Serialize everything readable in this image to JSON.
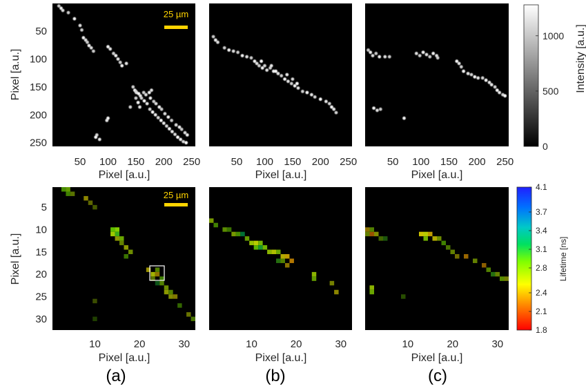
{
  "chart_data": [
    {
      "type": "heatmap",
      "panel": "(a)",
      "row": "intensity",
      "xlabel": "Pixel [a.u.]",
      "ylabel": "Pixel [a.u.]",
      "xticks": [
        50,
        100,
        150,
        200,
        250
      ],
      "yticks": [
        50,
        100,
        150,
        200,
        250
      ],
      "xlim": [
        1,
        256
      ],
      "ylim": [
        1,
        256
      ],
      "scale_bar": "25 µm",
      "colormap": "gray",
      "colorbar": {
        "label": "Intensity [a.u.]",
        "ticks": [
          0,
          500,
          1000
        ],
        "range": [
          0,
          1280
        ]
      },
      "spots": [
        [
          12,
          5
        ],
        [
          16,
          9
        ],
        [
          19,
          13
        ],
        [
          29,
          17
        ],
        [
          40,
          28
        ],
        [
          50,
          40
        ],
        [
          53,
          48
        ],
        [
          56,
          62
        ],
        [
          60,
          66
        ],
        [
          63,
          70
        ],
        [
          66,
          76
        ],
        [
          70,
          80
        ],
        [
          74,
          86
        ],
        [
          100,
          78
        ],
        [
          104,
          82
        ],
        [
          110,
          90
        ],
        [
          114,
          94
        ],
        [
          118,
          100
        ],
        [
          122,
          106
        ],
        [
          125,
          112
        ],
        [
          133,
          108
        ],
        [
          145,
          150
        ],
        [
          148,
          156
        ],
        [
          151,
          160
        ],
        [
          150,
          170
        ],
        [
          154,
          178
        ],
        [
          157,
          186
        ],
        [
          140,
          186
        ],
        [
          100,
          206
        ],
        [
          98,
          210
        ],
        [
          80,
          236
        ],
        [
          78,
          240
        ],
        [
          85,
          244
        ],
        [
          150,
          158
        ],
        [
          155,
          162
        ],
        [
          158,
          166
        ],
        [
          160,
          170
        ],
        [
          165,
          175
        ],
        [
          170,
          180
        ],
        [
          175,
          190
        ],
        [
          180,
          195
        ],
        [
          185,
          200
        ],
        [
          190,
          205
        ],
        [
          195,
          210
        ],
        [
          200,
          215
        ],
        [
          205,
          220
        ],
        [
          210,
          225
        ],
        [
          215,
          230
        ],
        [
          220,
          235
        ],
        [
          225,
          240
        ],
        [
          230,
          244
        ],
        [
          235,
          248
        ],
        [
          240,
          250
        ],
        [
          242,
          236
        ],
        [
          238,
          232
        ],
        [
          232,
          226
        ],
        [
          228,
          222
        ],
        [
          222,
          218
        ],
        [
          214,
          210
        ],
        [
          208,
          204
        ],
        [
          202,
          198
        ],
        [
          196,
          190
        ],
        [
          192,
          186
        ],
        [
          186,
          180
        ],
        [
          182,
          176
        ],
        [
          176,
          170
        ],
        [
          168,
          164
        ],
        [
          164,
          160
        ],
        [
          174,
          160
        ],
        [
          178,
          156
        ]
      ],
      "notes": "spot coordinates are [x, y] in image pixel units"
    },
    {
      "type": "heatmap",
      "panel": "(b)",
      "row": "intensity",
      "xlabel": "Pixel [a.u.]",
      "xticks": [
        50,
        100,
        150,
        200,
        250
      ],
      "xlim": [
        1,
        256
      ],
      "ylim": [
        1,
        256
      ],
      "colormap": "gray",
      "spots": [
        [
          8,
          60
        ],
        [
          12,
          66
        ],
        [
          16,
          70
        ],
        [
          28,
          80
        ],
        [
          36,
          84
        ],
        [
          44,
          86
        ],
        [
          52,
          88
        ],
        [
          60,
          94
        ],
        [
          68,
          96
        ],
        [
          76,
          98
        ],
        [
          82,
          104
        ],
        [
          86,
          108
        ],
        [
          90,
          112
        ],
        [
          96,
          116
        ],
        [
          104,
          120
        ],
        [
          110,
          116
        ],
        [
          116,
          122
        ],
        [
          124,
          126
        ],
        [
          130,
          130
        ],
        [
          136,
          136
        ],
        [
          142,
          140
        ],
        [
          148,
          144
        ],
        [
          154,
          148
        ],
        [
          160,
          152
        ],
        [
          168,
          158
        ],
        [
          176,
          160
        ],
        [
          184,
          164
        ],
        [
          190,
          168
        ],
        [
          200,
          172
        ],
        [
          210,
          176
        ],
        [
          216,
          180
        ],
        [
          220,
          186
        ],
        [
          224,
          190
        ],
        [
          228,
          196
        ],
        [
          120,
          122
        ],
        [
          112,
          112
        ],
        [
          100,
          112
        ],
        [
          94,
          104
        ],
        [
          140,
          128
        ],
        [
          150,
          136
        ],
        [
          158,
          144
        ]
      ]
    },
    {
      "type": "heatmap",
      "panel": "(c)",
      "row": "intensity",
      "xlabel": "Pixel [a.u.]",
      "xticks": [
        50,
        100,
        150,
        200,
        250
      ],
      "xlim": [
        1,
        256
      ],
      "ylim": [
        1,
        256
      ],
      "colormap": "gray",
      "spots": [
        [
          6,
          84
        ],
        [
          10,
          88
        ],
        [
          14,
          94
        ],
        [
          20,
          90
        ],
        [
          26,
          96
        ],
        [
          36,
          96
        ],
        [
          44,
          96
        ],
        [
          16,
          188
        ],
        [
          22,
          192
        ],
        [
          28,
          190
        ],
        [
          70,
          206
        ],
        [
          92,
          90
        ],
        [
          98,
          94
        ],
        [
          104,
          88
        ],
        [
          110,
          92
        ],
        [
          116,
          96
        ],
        [
          122,
          90
        ],
        [
          128,
          94
        ],
        [
          130,
          98
        ],
        [
          164,
          104
        ],
        [
          168,
          108
        ],
        [
          172,
          114
        ],
        [
          176,
          122
        ],
        [
          184,
          126
        ],
        [
          190,
          128
        ],
        [
          196,
          132
        ],
        [
          202,
          134
        ],
        [
          210,
          134
        ],
        [
          216,
          138
        ],
        [
          222,
          142
        ],
        [
          232,
          150
        ],
        [
          236,
          156
        ],
        [
          240,
          160
        ],
        [
          246,
          164
        ],
        [
          250,
          166
        ],
        [
          226,
          146
        ]
      ]
    },
    {
      "type": "heatmap",
      "panel": "(a)",
      "row": "lifetime",
      "xlabel": "Pixel [a.u.]",
      "ylabel": "Pixel [a.u.]",
      "xticks": [
        10,
        20,
        30
      ],
      "yticks": [
        5,
        10,
        15,
        20,
        25,
        30
      ],
      "xlim": [
        1,
        32
      ],
      "ylim": [
        1,
        32
      ],
      "scale_bar": "25 µm",
      "colormap": "jet",
      "colorbar": {
        "label": "Lifetime [ns]",
        "ticks": [
          1.8,
          2.1,
          2.4,
          2.8,
          3.1,
          3.4,
          3.7,
          4.1
        ],
        "range": [
          1.8,
          4.1
        ]
      },
      "highlight_box": {
        "x": [
          22,
          25
        ],
        "y": [
          19,
          21
        ]
      },
      "pixels": [
        [
          3,
          1,
          2.9,
          0.55
        ],
        [
          4,
          1,
          2.8,
          0.6
        ],
        [
          4,
          2,
          2.9,
          0.5
        ],
        [
          5,
          2,
          2.7,
          0.45
        ],
        [
          8,
          3,
          2.5,
          0.55
        ],
        [
          9,
          4,
          2.6,
          0.4
        ],
        [
          10,
          5,
          2.7,
          0.35
        ],
        [
          14,
          10,
          2.9,
          0.75
        ],
        [
          15,
          10,
          2.8,
          0.8
        ],
        [
          14,
          11,
          2.7,
          0.8
        ],
        [
          15,
          11,
          3.0,
          0.7
        ],
        [
          16,
          12,
          2.8,
          0.65
        ],
        [
          15,
          12,
          2.6,
          0.6
        ],
        [
          16,
          13,
          2.7,
          0.5
        ],
        [
          17,
          14,
          2.6,
          0.6
        ],
        [
          18,
          15,
          2.7,
          0.55
        ],
        [
          17,
          16,
          2.9,
          0.45
        ],
        [
          22,
          19,
          2.5,
          0.6
        ],
        [
          23,
          20,
          2.6,
          0.7
        ],
        [
          24,
          19,
          2.8,
          0.5
        ],
        [
          24,
          20,
          2.4,
          0.55
        ],
        [
          23,
          21,
          2.7,
          0.45
        ],
        [
          25,
          21,
          2.9,
          0.5
        ],
        [
          24,
          22,
          3.1,
          0.35
        ],
        [
          25,
          22,
          2.8,
          0.5
        ],
        [
          26,
          23,
          2.7,
          0.55
        ],
        [
          26,
          24,
          2.6,
          0.6
        ],
        [
          27,
          24,
          2.8,
          0.5
        ],
        [
          27,
          25,
          2.6,
          0.55
        ],
        [
          28,
          25,
          2.5,
          0.5
        ],
        [
          29,
          27,
          2.9,
          0.4
        ],
        [
          31,
          29,
          2.6,
          0.45
        ],
        [
          32,
          30,
          2.8,
          0.45
        ],
        [
          10,
          26,
          2.7,
          0.3
        ],
        [
          10,
          30,
          2.9,
          0.25
        ]
      ]
    },
    {
      "type": "heatmap",
      "panel": "(b)",
      "row": "lifetime",
      "xlabel": "Pixel [a.u.]",
      "xticks": [
        10,
        20,
        30
      ],
      "xlim": [
        1,
        32
      ],
      "ylim": [
        1,
        32
      ],
      "colormap": "jet",
      "pixels": [
        [
          1,
          8,
          2.7,
          0.6
        ],
        [
          2,
          9,
          2.9,
          0.5
        ],
        [
          4,
          10,
          2.8,
          0.55
        ],
        [
          5,
          10,
          2.9,
          0.45
        ],
        [
          6,
          11,
          2.7,
          0.6
        ],
        [
          7,
          11,
          2.9,
          0.55
        ],
        [
          8,
          11,
          3.2,
          0.5
        ],
        [
          9,
          12,
          2.8,
          0.6
        ],
        [
          10,
          13,
          2.7,
          0.75
        ],
        [
          11,
          13,
          2.6,
          0.8
        ],
        [
          12,
          13,
          2.8,
          0.7
        ],
        [
          11,
          14,
          2.9,
          0.7
        ],
        [
          12,
          14,
          3.1,
          0.65
        ],
        [
          13,
          14,
          2.8,
          0.7
        ],
        [
          14,
          15,
          2.7,
          0.7
        ],
        [
          15,
          15,
          2.6,
          0.75
        ],
        [
          16,
          15,
          2.8,
          0.65
        ],
        [
          17,
          16,
          2.5,
          0.7
        ],
        [
          18,
          16,
          2.4,
          0.75
        ],
        [
          19,
          17,
          2.3,
          0.7
        ],
        [
          17,
          17,
          2.8,
          0.5
        ],
        [
          18,
          18,
          2.4,
          0.55
        ],
        [
          16,
          17,
          3.0,
          0.45
        ],
        [
          24,
          20,
          2.7,
          0.7
        ],
        [
          24,
          21,
          2.8,
          0.6
        ],
        [
          28,
          22,
          2.6,
          0.5
        ],
        [
          29,
          24,
          2.5,
          0.55
        ]
      ]
    },
    {
      "type": "heatmap",
      "panel": "(c)",
      "row": "lifetime",
      "xlabel": "Pixel [a.u.]",
      "xticks": [
        10,
        20,
        30
      ],
      "xlim": [
        1,
        32
      ],
      "ylim": [
        1,
        32
      ],
      "colormap": "jet",
      "pixels": [
        [
          1,
          10,
          2.4,
          0.55
        ],
        [
          2,
          11,
          2.2,
          0.6
        ],
        [
          1,
          11,
          2.7,
          0.5
        ],
        [
          2,
          10,
          2.8,
          0.5
        ],
        [
          3,
          11,
          2.6,
          0.55
        ],
        [
          4,
          12,
          2.8,
          0.4
        ],
        [
          5,
          12,
          3.0,
          0.35
        ],
        [
          13,
          11,
          2.5,
          0.8
        ],
        [
          14,
          11,
          2.6,
          0.8
        ],
        [
          15,
          11,
          2.4,
          0.75
        ],
        [
          16,
          12,
          2.5,
          0.7
        ],
        [
          14,
          12,
          2.8,
          0.7
        ],
        [
          17,
          12,
          2.7,
          0.55
        ],
        [
          18,
          13,
          2.9,
          0.5
        ],
        [
          19,
          14,
          2.8,
          0.45
        ],
        [
          20,
          15,
          2.7,
          0.5
        ],
        [
          21,
          16,
          2.5,
          0.45
        ],
        [
          23,
          16,
          2.3,
          0.6
        ],
        [
          25,
          17,
          2.7,
          0.5
        ],
        [
          27,
          18,
          2.3,
          0.55
        ],
        [
          28,
          19,
          2.8,
          0.5
        ],
        [
          29,
          20,
          3.0,
          0.45
        ],
        [
          30,
          20,
          2.7,
          0.5
        ],
        [
          31,
          21,
          2.8,
          0.55
        ],
        [
          32,
          21,
          2.6,
          0.5
        ],
        [
          2,
          23,
          2.7,
          0.7
        ],
        [
          2,
          24,
          2.8,
          0.65
        ],
        [
          9,
          25,
          2.9,
          0.3
        ]
      ]
    }
  ],
  "labels": {
    "pixel_axis": "Pixel [a.u.]",
    "intensity_label": "Intensity [a.u.]",
    "lifetime_label": "Lifetime [ns]",
    "scale_bar": "25 µm",
    "panel_a": "(a)",
    "panel_b": "(b)",
    "panel_c": "(c)",
    "intensity_ticks": [
      "0",
      "500",
      "1000"
    ],
    "lifetime_ticks": [
      "1.8",
      "2.1",
      "2.4",
      "2.8",
      "3.1",
      "3.4",
      "3.7",
      "4.1"
    ],
    "top_xticks": [
      "50",
      "100",
      "150",
      "200",
      "250"
    ],
    "top_yticks": [
      "50",
      "100",
      "150",
      "200",
      "250"
    ],
    "bot_xticks": [
      "10",
      "20",
      "30"
    ],
    "bot_yticks": [
      "5",
      "10",
      "15",
      "20",
      "25",
      "30"
    ]
  }
}
